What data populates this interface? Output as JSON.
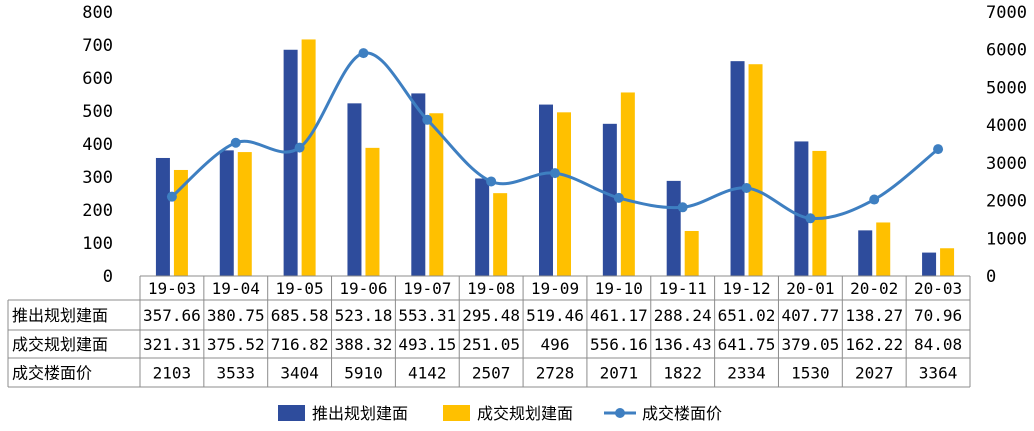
{
  "chart_data": {
    "type": "bar",
    "categories": [
      "19-03",
      "19-04",
      "19-05",
      "19-06",
      "19-07",
      "19-08",
      "19-09",
      "19-10",
      "19-11",
      "19-12",
      "20-01",
      "20-02",
      "20-03"
    ],
    "series": [
      {
        "name": "推出规划建面",
        "kind": "bar",
        "axis": "left",
        "color": "#2E4C9C",
        "values": [
          357.66,
          380.75,
          685.58,
          523.18,
          553.31,
          295.48,
          519.46,
          461.17,
          288.24,
          651.02,
          407.77,
          138.27,
          70.96
        ],
        "display": [
          "357.66",
          "380.75",
          "685.58",
          "523.18",
          "553.31",
          "295.48",
          "519.46",
          "461.17",
          "288.24",
          "651.02",
          "407.77",
          "138.27",
          "70.96"
        ]
      },
      {
        "name": "成交规划建面",
        "kind": "bar",
        "axis": "left",
        "color": "#FFC000",
        "values": [
          321.31,
          375.52,
          716.82,
          388.32,
          493.15,
          251.05,
          496,
          556.16,
          136.43,
          641.75,
          379.05,
          162.22,
          84.08
        ],
        "display": [
          "321.31",
          "375.52",
          "716.82",
          "388.32",
          "493.15",
          "251.05",
          "496",
          "556.16",
          "136.43",
          "641.75",
          "379.05",
          "162.22",
          "84.08"
        ]
      },
      {
        "name": "成交楼面价",
        "kind": "line",
        "axis": "right",
        "color": "#3E7FC1",
        "values": [
          2103,
          3533,
          3404,
          5910,
          4142,
          2507,
          2728,
          2071,
          1822,
          2334,
          1530,
          2027,
          3364
        ],
        "display": [
          "2103",
          "3533",
          "3404",
          "5910",
          "4142",
          "2507",
          "2728",
          "2071",
          "1822",
          "2334",
          "1530",
          "2027",
          "3364"
        ]
      }
    ],
    "y_left": {
      "ylim": [
        0,
        800
      ],
      "ticks": [
        "0",
        "100",
        "200",
        "300",
        "400",
        "500",
        "600",
        "700",
        "800"
      ]
    },
    "y_right": {
      "ylim": [
        0,
        7000
      ],
      "ticks": [
        "0",
        "1000",
        "2000",
        "3000",
        "4000",
        "5000",
        "6000",
        "7000"
      ]
    },
    "legend_position": "bottom",
    "grid": false,
    "data_table": true
  }
}
